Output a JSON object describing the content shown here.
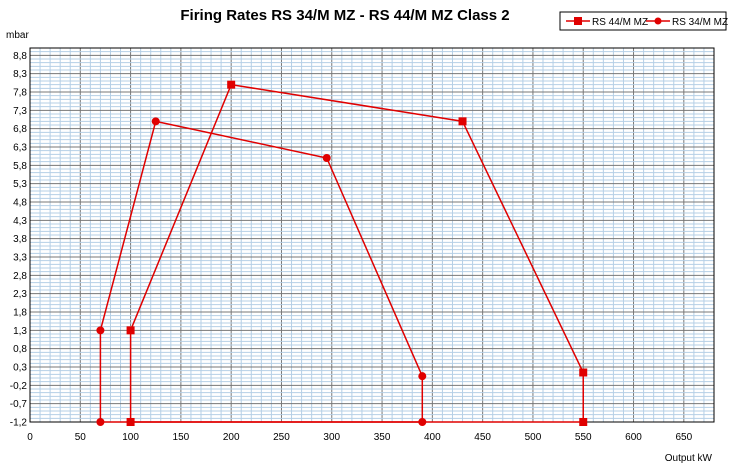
{
  "chart_data": {
    "type": "line",
    "title": "Firing Rates RS 34/M MZ - RS 44/M MZ   Class 2",
    "xlabel": "Output kW",
    "ylabel": "mbar",
    "xlim": [
      0,
      680
    ],
    "ylim": [
      -1.2,
      9.0
    ],
    "x_ticks": [
      "0",
      "50",
      "100",
      "150",
      "200",
      "250",
      "300",
      "350",
      "400",
      "450",
      "500",
      "550",
      "600",
      "650"
    ],
    "y_ticks": [
      "-1,2",
      "-0,7",
      "-0,2",
      "0,3",
      "0,8",
      "1,3",
      "1,8",
      "2,3",
      "2,8",
      "3,3",
      "3,8",
      "4,3",
      "4,8",
      "5,3",
      "5,8",
      "6,3",
      "6,8",
      "7,3",
      "7,8",
      "8,3",
      "8,8"
    ],
    "grid": true,
    "legend": "top-right",
    "series": [
      {
        "name": "RS 44/M MZ",
        "marker": "square",
        "color": "#e00000",
        "points": [
          [
            100,
            -1.2
          ],
          [
            100,
            1.3
          ],
          [
            200,
            8.0
          ],
          [
            430,
            7.0
          ],
          [
            550,
            0.15
          ],
          [
            550,
            -1.2
          ],
          [
            100,
            -1.2
          ]
        ]
      },
      {
        "name": "RS 34/M MZ",
        "marker": "circle",
        "color": "#e00000",
        "points": [
          [
            70,
            -1.2
          ],
          [
            70,
            1.3
          ],
          [
            125,
            7.0
          ],
          [
            295,
            6.0
          ],
          [
            390,
            0.05
          ],
          [
            390,
            -1.2
          ],
          [
            70,
            -1.2
          ]
        ]
      }
    ]
  }
}
